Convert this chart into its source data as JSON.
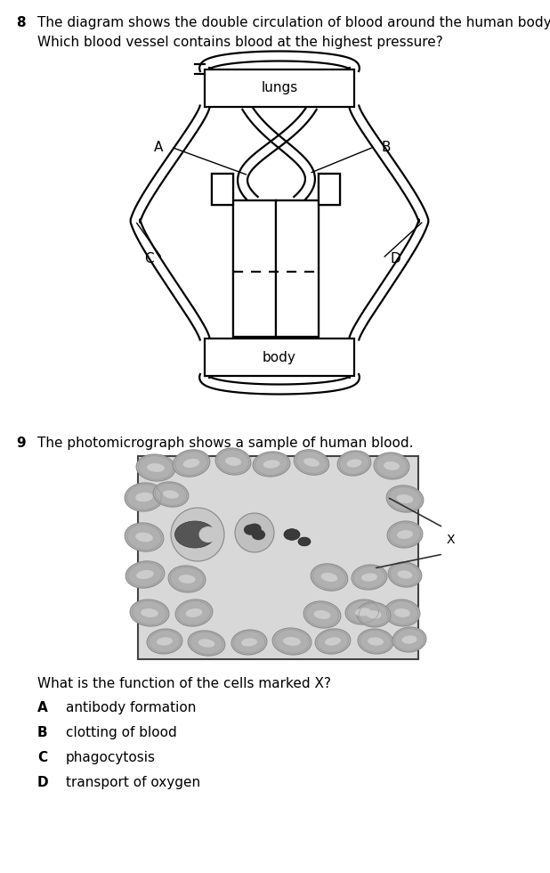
{
  "bg_color": "#ffffff",
  "q8_number": "8",
  "q8_text_line1": "The diagram shows the double circulation of blood around the human body.",
  "q8_text_line2": "Which blood vessel contains blood at the highest pressure?",
  "q9_number": "9",
  "q9_text_line1": "The photomicrograph shows a sample of human blood.",
  "q9_question": "What is the function of the cells marked X?",
  "options": [
    [
      "A",
      "antibody formation"
    ],
    [
      "B",
      "clotting of blood"
    ],
    [
      "C",
      "phagocytosis"
    ],
    [
      "D",
      "transport of oxygen"
    ]
  ],
  "line_color": "#000000",
  "text_color": "#000000",
  "bg_color2": "#ffffff"
}
